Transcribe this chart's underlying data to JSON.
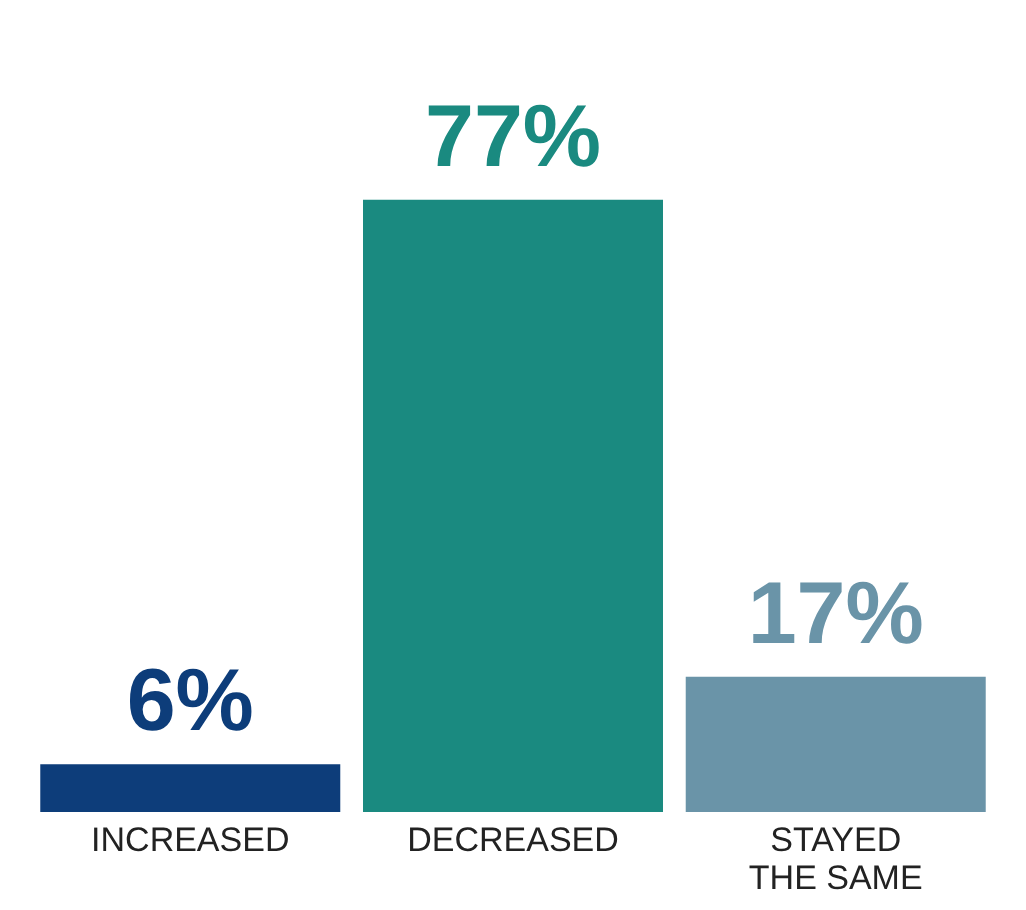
{
  "chart_data": {
    "type": "bar",
    "categories": [
      "INCREASED",
      "DECREASED",
      "STAYED THE SAME"
    ],
    "values": [
      6,
      77,
      17
    ],
    "colors": [
      "#0d3d7a",
      "#1a8a80",
      "#6a94a8"
    ],
    "value_labels": [
      "6%",
      "77%",
      "17%"
    ],
    "grid": false
  }
}
